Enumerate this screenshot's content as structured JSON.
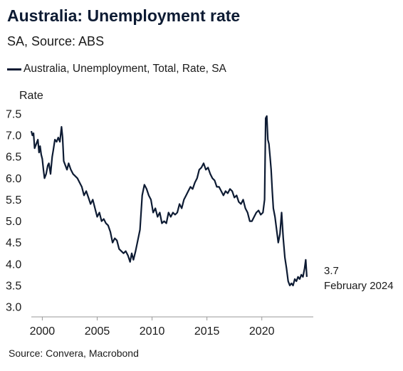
{
  "title": "Australia: Unemployment rate",
  "subtitle": "SA, Source: ABS",
  "legend": {
    "label": "Australia, Unemployment, Total, Rate, SA"
  },
  "source": "Source: Convera, Macrobond",
  "end_annotation": {
    "value": "3.7",
    "date": "February 2024"
  },
  "colors": {
    "line": "#0d1b33",
    "axis": "#999999"
  },
  "chart_data": {
    "type": "line",
    "title": "Australia: Unemployment rate",
    "subtitle": "SA, Source: ABS",
    "ylabel": "Rate",
    "xlabel": "",
    "ylim": [
      3.0,
      7.5
    ],
    "xlim": [
      1999.0,
      2024.3
    ],
    "yticks": [
      "3.0",
      "3.5",
      "4.0",
      "4.5",
      "5.0",
      "5.5",
      "6.0",
      "6.5",
      "7.0",
      "7.5"
    ],
    "xticks": [
      "2000",
      "2005",
      "2010",
      "2015",
      "2020"
    ],
    "grid": false,
    "legend_position": "top-left",
    "series": [
      {
        "name": "Australia, Unemployment, Total, Rate, SA",
        "x": [
          1999.0,
          1999.1,
          1999.2,
          1999.3,
          1999.45,
          1999.6,
          1999.7,
          1999.8,
          1999.9,
          2000.0,
          2000.1,
          2000.2,
          2000.35,
          2000.5,
          2000.6,
          2000.75,
          2000.9,
          2001.0,
          2001.15,
          2001.3,
          2001.45,
          2001.6,
          2001.75,
          2001.85,
          2001.95,
          2002.1,
          2002.25,
          2002.4,
          2002.6,
          2002.8,
          2003.0,
          2003.2,
          2003.4,
          2003.6,
          2003.8,
          2004.0,
          2004.2,
          2004.4,
          2004.6,
          2004.8,
          2005.0,
          2005.2,
          2005.4,
          2005.6,
          2005.8,
          2006.0,
          2006.2,
          2006.4,
          2006.6,
          2006.8,
          2007.0,
          2007.2,
          2007.4,
          2007.6,
          2007.8,
          2008.0,
          2008.15,
          2008.3,
          2008.5,
          2008.7,
          2008.9,
          2009.1,
          2009.3,
          2009.5,
          2009.7,
          2009.9,
          2010.1,
          2010.3,
          2010.5,
          2010.7,
          2010.9,
          2011.1,
          2011.3,
          2011.5,
          2011.7,
          2011.9,
          2012.1,
          2012.3,
          2012.5,
          2012.7,
          2012.9,
          2013.1,
          2013.3,
          2013.5,
          2013.7,
          2013.9,
          2014.1,
          2014.3,
          2014.5,
          2014.7,
          2014.9,
          2015.1,
          2015.3,
          2015.5,
          2015.7,
          2015.9,
          2016.1,
          2016.3,
          2016.5,
          2016.7,
          2016.9,
          2017.1,
          2017.3,
          2017.5,
          2017.7,
          2017.9,
          2018.1,
          2018.3,
          2018.5,
          2018.7,
          2018.9,
          2019.1,
          2019.3,
          2019.5,
          2019.7,
          2019.9,
          2020.1,
          2020.25,
          2020.35,
          2020.45,
          2020.55,
          2020.65,
          2020.75,
          2020.85,
          2020.95,
          2021.05,
          2021.2,
          2021.35,
          2021.5,
          2021.65,
          2021.8,
          2021.95,
          2022.1,
          2022.25,
          2022.4,
          2022.55,
          2022.7,
          2022.85,
          2023.0,
          2023.15,
          2023.3,
          2023.45,
          2023.6,
          2023.75,
          2023.9,
          2024.0,
          2024.1
        ],
        "values": [
          7.1,
          7.0,
          7.05,
          6.7,
          6.8,
          6.9,
          6.6,
          6.75,
          6.55,
          6.45,
          6.2,
          6.0,
          6.1,
          6.3,
          6.35,
          6.1,
          6.5,
          6.65,
          6.9,
          6.85,
          6.95,
          6.85,
          7.2,
          6.95,
          6.4,
          6.3,
          6.2,
          6.35,
          6.2,
          6.1,
          6.05,
          6.0,
          5.9,
          5.8,
          5.6,
          5.7,
          5.55,
          5.4,
          5.5,
          5.3,
          5.1,
          5.2,
          5.0,
          5.05,
          4.95,
          4.9,
          4.75,
          4.5,
          4.6,
          4.55,
          4.35,
          4.3,
          4.25,
          4.3,
          4.2,
          4.05,
          4.25,
          4.1,
          4.3,
          4.55,
          4.8,
          5.6,
          5.85,
          5.75,
          5.6,
          5.5,
          5.2,
          5.3,
          5.1,
          5.2,
          4.95,
          5.0,
          4.95,
          5.2,
          5.1,
          5.2,
          5.15,
          5.2,
          5.4,
          5.3,
          5.5,
          5.6,
          5.7,
          5.8,
          5.75,
          5.9,
          6.0,
          6.2,
          6.25,
          6.35,
          6.2,
          6.25,
          6.1,
          6.0,
          5.95,
          5.8,
          5.8,
          5.7,
          5.6,
          5.7,
          5.65,
          5.75,
          5.7,
          5.55,
          5.6,
          5.45,
          5.4,
          5.5,
          5.3,
          5.2,
          5.0,
          5.0,
          5.1,
          5.2,
          5.25,
          5.15,
          5.2,
          5.5,
          7.4,
          7.45,
          6.9,
          6.8,
          6.5,
          6.2,
          5.7,
          5.3,
          5.1,
          4.8,
          4.5,
          4.7,
          5.2,
          4.6,
          4.15,
          3.9,
          3.6,
          3.5,
          3.55,
          3.5,
          3.65,
          3.6,
          3.7,
          3.65,
          3.75,
          3.7,
          3.9,
          4.1,
          3.7
        ]
      }
    ]
  }
}
